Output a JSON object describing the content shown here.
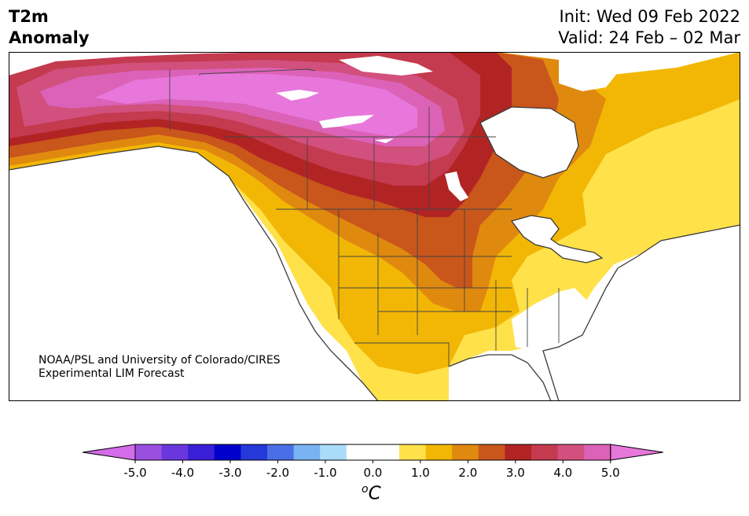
{
  "header": {
    "title_line1": "T2m",
    "title_line2": "Anomaly",
    "init": "Init: Wed 09 Feb 2022",
    "valid": "Valid: 24 Feb – 02 Mar"
  },
  "credit": {
    "line1": "NOAA/PSL and University of Colorado/CIRES",
    "line2": "Experimental LIM Forecast"
  },
  "colorbar": {
    "tick_labels": [
      "-5.0",
      "-4.0",
      "-3.0",
      "-2.0",
      "-1.0",
      "0.0",
      "1.0",
      "2.0",
      "3.0",
      "4.0",
      "5.0"
    ],
    "unit_base": "C",
    "unit_sup": "o",
    "colors": [
      "#d46be8",
      "#9b4fe0",
      "#6a36de",
      "#3a1fd6",
      "#0000cc",
      "#2538d8",
      "#4a6ee6",
      "#79b3f2",
      "#aadcfa",
      "#ffffff",
      "#ffffff",
      "#ffe14a",
      "#f2b705",
      "#e0890f",
      "#c9561a",
      "#b22424",
      "#c43a4e",
      "#d2507e",
      "#dc62b8",
      "#e877dc"
    ]
  },
  "map": {
    "anomaly_levels": {
      "neutral": "#ffffff",
      "plus_0_5": "#ffe14a",
      "plus_1_0": "#f2b705",
      "plus_1_5": "#e0890f",
      "plus_2_0": "#c9561a",
      "plus_2_5": "#b22424",
      "plus_3_0": "#c43a4e",
      "plus_3_5": "#d2507e",
      "plus_4_0": "#dc62b8",
      "plus_4_5": "#e877dc"
    }
  }
}
